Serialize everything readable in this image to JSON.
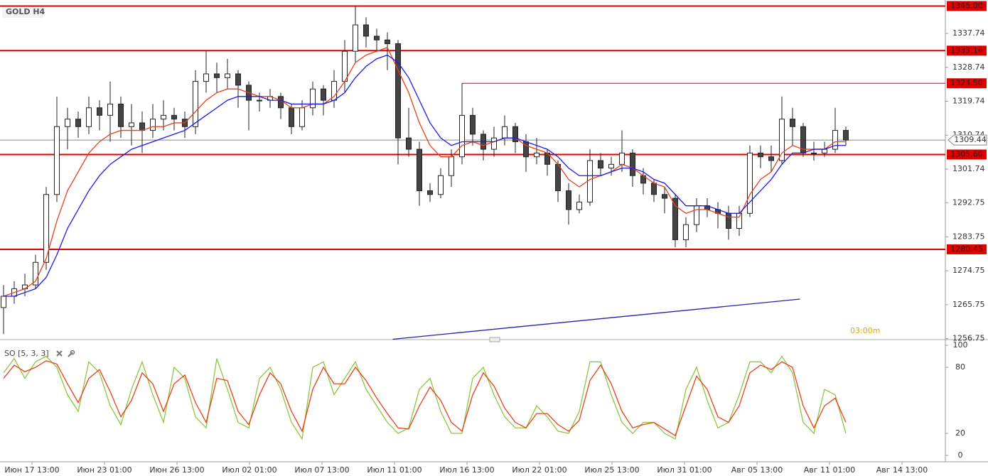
{
  "chart_data": [
    {
      "type": "candlestick",
      "title": "GOLD H4",
      "ylim": [
        1256.5,
        1346.6
      ],
      "yticks": [
        1337.74,
        1328.74,
        1319.74,
        1310.74,
        1301.74,
        1292.75,
        1283.75,
        1274.75,
        1265.75,
        1256.75
      ],
      "levels": [
        {
          "value": 1345,
          "label": "1345.00"
        },
        1333.16,
        {
          "value": 1305.6,
          "label": "1305.60"
        },
        1280.45
      ],
      "level_color": "#e00000",
      "ray": {
        "price": {
          "value": 1324.5,
          "label": "1324.50"
        },
        "from_index": 43
      },
      "last_price": 1309.44,
      "trendline": {
        "from": [
          36.5,
          1256.6
        ],
        "to": [
          74.7,
          1267.25
        ],
        "color": "#2222aa"
      },
      "countdown": "03:00m",
      "x_labels": [
        "Июн 17 13:00",
        "Июн 23 01:00",
        "Июн 26 13:00",
        "Июл 02 01:00",
        "Июл 07 13:00",
        "Июл 11 01:00",
        "Июл 16 13:00",
        "Июл 22 01:00",
        "Июл 25 13:00",
        "Июл 31 01:00",
        "Авг 05 13:00",
        "Авг 11 01:00",
        "Авг 14 13:00"
      ],
      "up_color": "#ffffff",
      "down_color": "#444444",
      "ohlc": [
        [
          1265,
          1271,
          1258,
          1268
        ],
        [
          1268,
          1272,
          1266,
          1270
        ],
        [
          1270,
          1274,
          1268,
          1271
        ],
        [
          1271,
          1279,
          1270,
          1277
        ],
        [
          1277,
          1297,
          1275,
          1295
        ],
        [
          1295,
          1321,
          1293,
          1313
        ],
        [
          1313,
          1318,
          1307,
          1315
        ],
        [
          1315,
          1317,
          1310,
          1313
        ],
        [
          1313,
          1321,
          1311,
          1318
        ],
        [
          1318,
          1320,
          1312,
          1316
        ],
        [
          1316,
          1325,
          1309,
          1319
        ],
        [
          1319,
          1321,
          1310,
          1313
        ],
        [
          1313,
          1319,
          1308,
          1314
        ],
        [
          1314,
          1317,
          1306,
          1312
        ],
        [
          1312,
          1319,
          1310,
          1315
        ],
        [
          1315,
          1320,
          1312,
          1316
        ],
        [
          1316,
          1318,
          1312,
          1315
        ],
        [
          1315,
          1317,
          1310,
          1313
        ],
        [
          1313,
          1328,
          1311,
          1325
        ],
        [
          1325,
          1333,
          1322,
          1327
        ],
        [
          1327,
          1330,
          1322,
          1326
        ],
        [
          1326,
          1331,
          1323,
          1327
        ],
        [
          1327,
          1328,
          1318,
          1324
        ],
        [
          1324,
          1325,
          1312,
          1320
        ],
        [
          1320,
          1322,
          1317,
          1320
        ],
        [
          1320,
          1323,
          1318,
          1321
        ],
        [
          1321,
          1322,
          1315,
          1318
        ],
        [
          1318,
          1319,
          1311,
          1313
        ],
        [
          1313,
          1320,
          1312,
          1318
        ],
        [
          1318,
          1325,
          1316,
          1323
        ],
        [
          1323,
          1324,
          1316,
          1320
        ],
        [
          1320,
          1328,
          1318,
          1325
        ],
        [
          1325,
          1336,
          1322,
          1333
        ],
        [
          1333,
          1345,
          1330,
          1340
        ],
        [
          1340,
          1342,
          1334,
          1337
        ],
        [
          1337,
          1339,
          1333,
          1336
        ],
        [
          1336,
          1338,
          1328,
          1335
        ],
        [
          1335,
          1336,
          1303,
          1310
        ],
        [
          1310,
          1318,
          1305,
          1307
        ],
        [
          1307,
          1309,
          1292,
          1296
        ],
        [
          1296,
          1298,
          1293,
          1295
        ],
        [
          1295,
          1302,
          1294,
          1300
        ],
        [
          1300,
          1307,
          1297,
          1305
        ],
        [
          1305,
          1324.5,
          1303,
          1316
        ],
        [
          1316,
          1318,
          1308,
          1311
        ],
        [
          1311,
          1312,
          1304,
          1307
        ],
        [
          1307,
          1313,
          1305,
          1310
        ],
        [
          1310,
          1316,
          1308,
          1313
        ],
        [
          1313,
          1314,
          1306,
          1309
        ],
        [
          1309,
          1311,
          1301,
          1305
        ],
        [
          1305,
          1310,
          1303,
          1306
        ],
        [
          1306,
          1307,
          1300,
          1303
        ],
        [
          1303,
          1304,
          1293,
          1296
        ],
        [
          1296,
          1298,
          1287,
          1291
        ],
        [
          1291,
          1295,
          1290,
          1293
        ],
        [
          1293,
          1307,
          1292,
          1304
        ],
        [
          1304,
          1306,
          1300,
          1302
        ],
        [
          1302,
          1305,
          1300,
          1303
        ],
        [
          1303,
          1312,
          1301,
          1306
        ],
        [
          1306,
          1307,
          1297,
          1300
        ],
        [
          1300,
          1302,
          1295,
          1298
        ],
        [
          1298,
          1299,
          1293,
          1295
        ],
        [
          1295,
          1297,
          1290,
          1294
        ],
        [
          1294,
          1295,
          1281,
          1283
        ],
        [
          1283,
          1289,
          1281,
          1287
        ],
        [
          1287,
          1294,
          1285,
          1292
        ],
        [
          1292,
          1294,
          1289,
          1291
        ],
        [
          1291,
          1293,
          1286,
          1290
        ],
        [
          1290,
          1292,
          1283,
          1286
        ],
        [
          1286,
          1292,
          1284,
          1290
        ],
        [
          1290,
          1308,
          1289,
          1306
        ],
        [
          1306,
          1308,
          1302,
          1305
        ],
        [
          1305,
          1308,
          1301,
          1304
        ],
        [
          1304,
          1321,
          1303,
          1315
        ],
        [
          1315,
          1318,
          1308,
          1313
        ],
        [
          1313,
          1314,
          1305,
          1306
        ],
        [
          1306,
          1309,
          1304,
          1306
        ],
        [
          1306,
          1309,
          1305,
          1307
        ],
        [
          1307,
          1318,
          1306,
          1312
        ],
        [
          1312,
          1313,
          1308,
          1309.44
        ]
      ],
      "moving_averages": [
        {
          "color": "#e8401c",
          "values": [
            1268,
            1269,
            1270,
            1272,
            1278,
            1288,
            1296,
            1301,
            1306,
            1309,
            1311,
            1312,
            1312,
            1312,
            1313,
            1313,
            1314,
            1314,
            1317,
            1320,
            1322,
            1323,
            1323,
            1322,
            1321,
            1321,
            1320,
            1318,
            1318,
            1319,
            1319,
            1321,
            1325,
            1330,
            1332,
            1333,
            1334,
            1328,
            1322,
            1314,
            1308,
            1305,
            1305,
            1308,
            1309,
            1308,
            1309,
            1310,
            1310,
            1308,
            1307,
            1306,
            1303,
            1299,
            1297,
            1299,
            1300,
            1301,
            1303,
            1302,
            1300,
            1298,
            1297,
            1292,
            1290,
            1291,
            1291,
            1290,
            1289,
            1289,
            1295,
            1299,
            1301,
            1306,
            1308,
            1307,
            1307,
            1307,
            1309,
            1309
          ]
        },
        {
          "color": "#1a1aee",
          "values": [
            1268,
            1268,
            1269,
            1270,
            1273,
            1279,
            1286,
            1291,
            1296,
            1300,
            1303,
            1305,
            1307,
            1308,
            1309,
            1310,
            1311,
            1312,
            1314,
            1316,
            1318,
            1320,
            1321,
            1321,
            1321,
            1320,
            1320,
            1319,
            1319,
            1319,
            1319,
            1320,
            1322,
            1326,
            1329,
            1331,
            1332,
            1330,
            1326,
            1320,
            1314,
            1310,
            1308,
            1309,
            1309,
            1309,
            1309,
            1310,
            1310,
            1309,
            1308,
            1307,
            1305,
            1302,
            1300,
            1300,
            1300,
            1301,
            1302,
            1302,
            1301,
            1299,
            1298,
            1295,
            1292,
            1292,
            1292,
            1291,
            1290,
            1290,
            1293,
            1296,
            1299,
            1303,
            1306,
            1306,
            1307,
            1307,
            1308,
            1308
          ]
        }
      ]
    },
    {
      "type": "line",
      "title": "SO [5, 3, 3]",
      "ylim": [
        -5.8,
        103.9
      ],
      "yticks": [
        100,
        80,
        20,
        0
      ],
      "series": [
        {
          "color": "#8cc63f",
          "values": [
            75,
            88,
            70,
            85,
            90,
            80,
            55,
            40,
            85,
            75,
            45,
            28,
            60,
            85,
            55,
            30,
            80,
            70,
            35,
            25,
            88,
            60,
            30,
            25,
            70,
            80,
            60,
            30,
            15,
            80,
            85,
            55,
            70,
            85,
            60,
            45,
            30,
            20,
            25,
            60,
            70,
            40,
            20,
            20,
            70,
            80,
            55,
            35,
            25,
            25,
            45,
            35,
            22,
            20,
            40,
            85,
            85,
            55,
            30,
            20,
            30,
            30,
            20,
            15,
            60,
            80,
            50,
            25,
            30,
            55,
            85,
            85,
            75,
            90,
            75,
            30,
            20,
            60,
            55,
            20
          ]
        },
        {
          "color": "#e8401c",
          "values": [
            70,
            82,
            76,
            80,
            86,
            83,
            65,
            48,
            70,
            78,
            58,
            35,
            50,
            75,
            65,
            40,
            65,
            73,
            48,
            30,
            70,
            68,
            40,
            28,
            55,
            75,
            65,
            40,
            22,
            60,
            80,
            65,
            65,
            80,
            68,
            52,
            38,
            25,
            24,
            45,
            62,
            50,
            30,
            22,
            55,
            75,
            63,
            43,
            30,
            25,
            38,
            38,
            28,
            22,
            32,
            68,
            82,
            65,
            40,
            25,
            28,
            30,
            24,
            18,
            45,
            72,
            60,
            35,
            30,
            45,
            75,
            82,
            78,
            85,
            80,
            45,
            25,
            45,
            52,
            30
          ]
        }
      ]
    }
  ]
}
